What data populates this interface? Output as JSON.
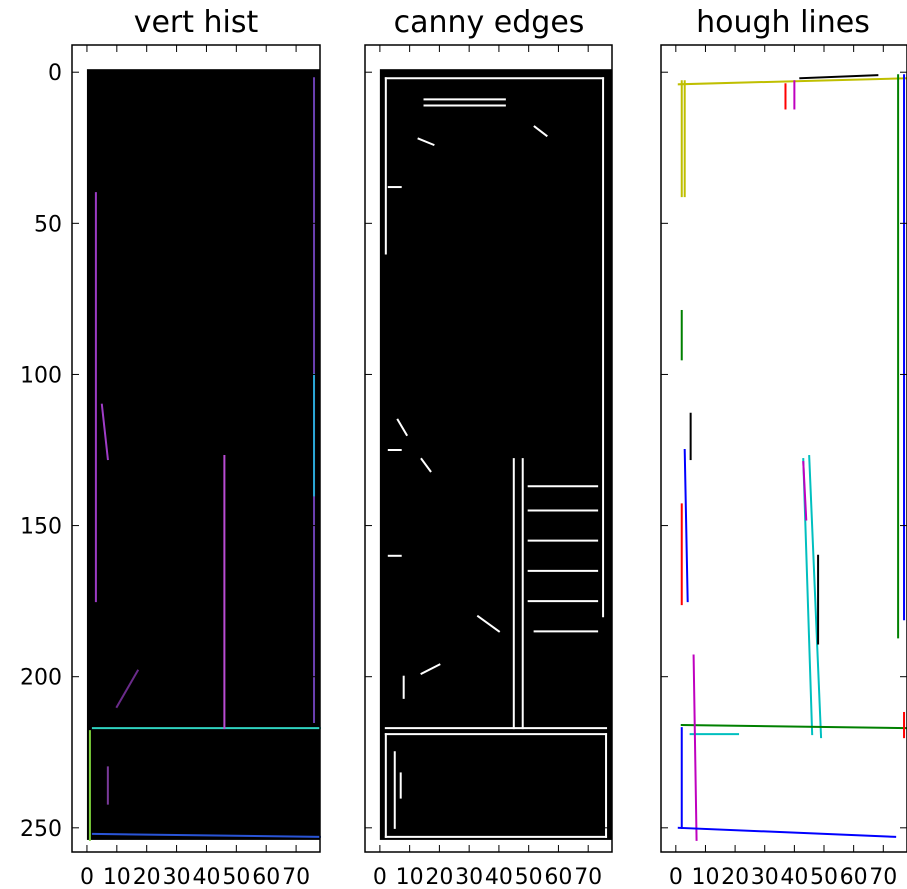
{
  "chart_data": [
    {
      "type": "heatmap",
      "title": "vert hist",
      "xlim": [
        -5,
        78
      ],
      "ylim": [
        258,
        -9
      ],
      "xticks": [
        0,
        10,
        20,
        30,
        40,
        50,
        60,
        70
      ],
      "xtick_labels": [
        "0",
        "10",
        "20",
        "30",
        "40",
        "50",
        "60",
        "70"
      ],
      "yticks": [
        0,
        50,
        100,
        150,
        200,
        250
      ],
      "ytick_labels": [
        "0",
        "50",
        "100",
        "150",
        "200",
        "250"
      ],
      "image_extent": [
        0,
        78,
        254,
        -1
      ],
      "background": "#000000",
      "segments": [
        {
          "x1": 2,
          "y1": 217,
          "x2": 78,
          "y2": 217,
          "color": "#2fd3c0"
        },
        {
          "x1": 2,
          "y1": 252,
          "x2": 78,
          "y2": 253,
          "color": "#2a55d8"
        },
        {
          "x1": 1,
          "y1": 218,
          "x2": 1,
          "y2": 254,
          "color": "#7ccf3a"
        },
        {
          "x1": 46,
          "y1": 127,
          "x2": 46,
          "y2": 217,
          "color": "#b94cd3"
        },
        {
          "x1": 76,
          "y1": 2,
          "x2": 76,
          "y2": 215,
          "color": "#6a3fb0"
        },
        {
          "x1": 76,
          "y1": 100,
          "x2": 76,
          "y2": 140,
          "color": "#2aa7d4"
        },
        {
          "x1": 3,
          "y1": 40,
          "x2": 3,
          "y2": 175,
          "color": "#9c3bc4"
        },
        {
          "x1": 5,
          "y1": 110,
          "x2": 7,
          "y2": 128,
          "color": "#a03cc8"
        },
        {
          "x1": 10,
          "y1": 210,
          "x2": 17,
          "y2": 198,
          "color": "#6a2b8a"
        },
        {
          "x1": 7,
          "y1": 230,
          "x2": 7,
          "y2": 242,
          "color": "#7a3a9a"
        }
      ]
    },
    {
      "type": "heatmap",
      "title": "canny edges",
      "xlim": [
        -5,
        78
      ],
      "ylim": [
        258,
        -9
      ],
      "xticks": [
        0,
        10,
        20,
        30,
        40,
        50,
        60,
        70
      ],
      "xtick_labels": [
        "0",
        "10",
        "20",
        "30",
        "40",
        "50",
        "60",
        "70"
      ],
      "yticks": [
        0,
        50,
        100,
        150,
        200,
        250
      ],
      "image_extent": [
        0,
        78,
        254,
        -1
      ],
      "background": "#000000",
      "segments": [
        {
          "x1": 2,
          "y1": 2,
          "x2": 75,
          "y2": 2,
          "color": "#ffffff"
        },
        {
          "x1": 75,
          "y1": 2,
          "x2": 75,
          "y2": 180,
          "color": "#ffffff"
        },
        {
          "x1": 2,
          "y1": 2,
          "x2": 2,
          "y2": 60,
          "color": "#ffffff"
        },
        {
          "x1": 15,
          "y1": 9,
          "x2": 42,
          "y2": 9,
          "color": "#ffffff"
        },
        {
          "x1": 15,
          "y1": 11,
          "x2": 42,
          "y2": 11,
          "color": "#ffffff"
        },
        {
          "x1": 45,
          "y1": 128,
          "x2": 45,
          "y2": 217,
          "color": "#ffffff"
        },
        {
          "x1": 48,
          "y1": 128,
          "x2": 48,
          "y2": 217,
          "color": "#ffffff"
        },
        {
          "x1": 2,
          "y1": 217,
          "x2": 76,
          "y2": 217,
          "color": "#ffffff"
        },
        {
          "x1": 2,
          "y1": 219,
          "x2": 76,
          "y2": 219,
          "color": "#ffffff"
        },
        {
          "x1": 2,
          "y1": 219,
          "x2": 2,
          "y2": 253,
          "color": "#ffffff"
        },
        {
          "x1": 76,
          "y1": 219,
          "x2": 76,
          "y2": 253,
          "color": "#ffffff"
        },
        {
          "x1": 2,
          "y1": 253,
          "x2": 76,
          "y2": 253,
          "color": "#ffffff"
        },
        {
          "x1": 5,
          "y1": 225,
          "x2": 5,
          "y2": 250,
          "color": "#ffffff"
        },
        {
          "x1": 7,
          "y1": 232,
          "x2": 7,
          "y2": 240,
          "color": "#ffffff"
        },
        {
          "x1": 50,
          "y1": 137,
          "x2": 73,
          "y2": 137,
          "color": "#ffffff"
        },
        {
          "x1": 50,
          "y1": 145,
          "x2": 73,
          "y2": 145,
          "color": "#ffffff"
        },
        {
          "x1": 50,
          "y1": 155,
          "x2": 73,
          "y2": 155,
          "color": "#ffffff"
        },
        {
          "x1": 50,
          "y1": 165,
          "x2": 73,
          "y2": 165,
          "color": "#ffffff"
        },
        {
          "x1": 50,
          "y1": 175,
          "x2": 73,
          "y2": 175,
          "color": "#ffffff"
        },
        {
          "x1": 52,
          "y1": 185,
          "x2": 73,
          "y2": 185,
          "color": "#ffffff"
        },
        {
          "x1": 3,
          "y1": 38,
          "x2": 7,
          "y2": 38,
          "color": "#ffffff"
        },
        {
          "x1": 3,
          "y1": 125,
          "x2": 7,
          "y2": 125,
          "color": "#ffffff"
        },
        {
          "x1": 3,
          "y1": 160,
          "x2": 7,
          "y2": 160,
          "color": "#ffffff"
        },
        {
          "x1": 8,
          "y1": 200,
          "x2": 8,
          "y2": 207,
          "color": "#ffffff"
        },
        {
          "x1": 14,
          "y1": 199,
          "x2": 20,
          "y2": 196,
          "color": "#ffffff"
        },
        {
          "x1": 13,
          "y1": 22,
          "x2": 18,
          "y2": 24,
          "color": "#ffffff"
        },
        {
          "x1": 6,
          "y1": 115,
          "x2": 9,
          "y2": 120,
          "color": "#ffffff"
        },
        {
          "x1": 14,
          "y1": 128,
          "x2": 17,
          "y2": 132,
          "color": "#ffffff"
        },
        {
          "x1": 33,
          "y1": 180,
          "x2": 40,
          "y2": 185,
          "color": "#ffffff"
        },
        {
          "x1": 52,
          "y1": 18,
          "x2": 56,
          "y2": 21,
          "color": "#ffffff"
        }
      ]
    },
    {
      "type": "line",
      "title": "hough lines",
      "xlim": [
        -5,
        78
      ],
      "ylim": [
        258,
        -9
      ],
      "xticks": [
        0,
        10,
        20,
        30,
        40,
        50,
        60,
        70
      ],
      "xtick_labels": [
        "0",
        "10",
        "20",
        "30",
        "40",
        "50",
        "60",
        "70"
      ],
      "yticks": [
        0,
        50,
        100,
        150,
        200,
        250
      ],
      "background": "#ffffff",
      "segments": [
        {
          "x1": 1,
          "y1": 4,
          "x2": 78,
          "y2": 2,
          "color": "#bfbf00"
        },
        {
          "x1": 3,
          "y1": 3,
          "x2": 3,
          "y2": 41,
          "color": "#bfbf00"
        },
        {
          "x1": 2,
          "y1": 3,
          "x2": 2,
          "y2": 41,
          "color": "#bfbf00"
        },
        {
          "x1": 42,
          "y1": 2,
          "x2": 68,
          "y2": 1,
          "color": "#000000"
        },
        {
          "x1": 37,
          "y1": 4,
          "x2": 37,
          "y2": 12,
          "color": "#ff0000"
        },
        {
          "x1": 40,
          "y1": 3,
          "x2": 40,
          "y2": 12,
          "color": "#bf00bf"
        },
        {
          "x1": 75,
          "y1": 1,
          "x2": 75,
          "y2": 187,
          "color": "#008000"
        },
        {
          "x1": 77,
          "y1": 1,
          "x2": 77,
          "y2": 181,
          "color": "#0000ff"
        },
        {
          "x1": 2,
          "y1": 79,
          "x2": 2,
          "y2": 95,
          "color": "#008000"
        },
        {
          "x1": 5,
          "y1": 113,
          "x2": 5,
          "y2": 128,
          "color": "#000000"
        },
        {
          "x1": 3,
          "y1": 125,
          "x2": 4,
          "y2": 175,
          "color": "#0000ff"
        },
        {
          "x1": 2,
          "y1": 143,
          "x2": 2,
          "y2": 176,
          "color": "#ff0000"
        },
        {
          "x1": 43,
          "y1": 128,
          "x2": 46,
          "y2": 219,
          "color": "#00bfbf"
        },
        {
          "x1": 45,
          "y1": 127,
          "x2": 49,
          "y2": 220,
          "color": "#00bfbf"
        },
        {
          "x1": 43,
          "y1": 129,
          "x2": 44,
          "y2": 148,
          "color": "#bf00bf"
        },
        {
          "x1": 48,
          "y1": 160,
          "x2": 48,
          "y2": 189,
          "color": "#000000"
        },
        {
          "x1": 2,
          "y1": 216,
          "x2": 78,
          "y2": 217,
          "color": "#008000"
        },
        {
          "x1": 5,
          "y1": 219,
          "x2": 21,
          "y2": 219,
          "color": "#00bfbf"
        },
        {
          "x1": 2,
          "y1": 217,
          "x2": 2,
          "y2": 250,
          "color": "#0000ff"
        },
        {
          "x1": 6,
          "y1": 193,
          "x2": 7,
          "y2": 254,
          "color": "#bf00bf"
        },
        {
          "x1": 1,
          "y1": 250,
          "x2": 74,
          "y2": 253,
          "color": "#0000ff"
        },
        {
          "x1": 77,
          "y1": 212,
          "x2": 77,
          "y2": 220,
          "color": "#ff0000"
        }
      ]
    }
  ]
}
